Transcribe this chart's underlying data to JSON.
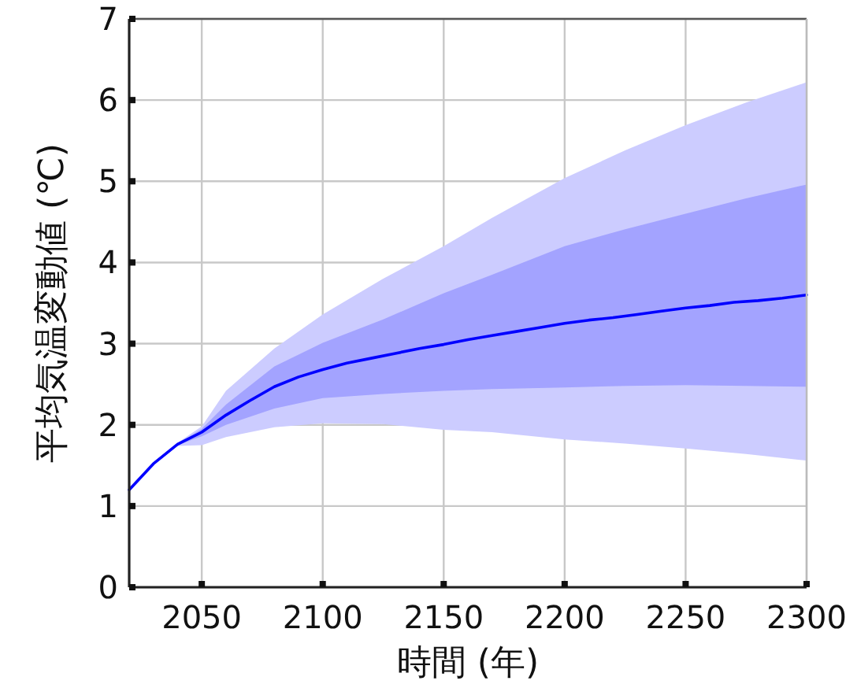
{
  "chart_data": {
    "type": "line",
    "xlabel": "時間 (年)",
    "ylabel": "平均気温変動値 (℃)",
    "xlim": [
      2020,
      2300
    ],
    "ylim": [
      0,
      7
    ],
    "xticks": [
      2050,
      2100,
      2150,
      2200,
      2250,
      2300
    ],
    "yticks": [
      0,
      1,
      2,
      3,
      4,
      5,
      6,
      7
    ],
    "grid": true,
    "marker": "none",
    "line_style": "solid",
    "series": [
      {
        "color": "#ccccff",
        "x": [
          2040,
          2050,
          2060,
          2080,
          2100,
          2125,
          2150,
          2170,
          2200,
          2225,
          2250,
          2275,
          2300
        ],
        "values": [
          null,
          null,
          null,
          null,
          null,
          null,
          null,
          null,
          null,
          null,
          null,
          null,
          null
        ],
        "lower": [
          1.74,
          1.75,
          1.85,
          1.97,
          2.02,
          2.01,
          1.94,
          1.91,
          1.82,
          1.77,
          1.71,
          1.64,
          1.56
        ],
        "upper": [
          1.78,
          1.98,
          2.42,
          2.94,
          3.36,
          3.8,
          4.2,
          4.55,
          5.04,
          5.38,
          5.69,
          5.97,
          6.22
        ]
      },
      {
        "color": "#a3a3ff",
        "x": [
          2040,
          2050,
          2060,
          2080,
          2100,
          2125,
          2150,
          2170,
          2200,
          2225,
          2250,
          2275,
          2300
        ],
        "values": [
          null,
          null,
          null,
          null,
          null,
          null,
          null,
          null,
          null,
          null,
          null,
          null,
          null
        ],
        "lower": [
          1.75,
          1.86,
          2.0,
          2.2,
          2.33,
          2.38,
          2.42,
          2.44,
          2.46,
          2.48,
          2.49,
          2.48,
          2.47
        ],
        "upper": [
          1.77,
          1.95,
          2.25,
          2.72,
          3.01,
          3.3,
          3.62,
          3.85,
          4.2,
          4.41,
          4.6,
          4.79,
          4.96
        ]
      },
      {
        "color": "#0000ff",
        "x": [
          2020,
          2030,
          2040,
          2050,
          2060,
          2070,
          2080,
          2090,
          2100,
          2110,
          2120,
          2130,
          2140,
          2150,
          2160,
          2170,
          2180,
          2190,
          2200,
          2210,
          2220,
          2230,
          2240,
          2250,
          2260,
          2270,
          2280,
          2290,
          2300
        ],
        "values": [
          1.2,
          1.52,
          1.76,
          1.91,
          2.12,
          2.3,
          2.47,
          2.59,
          2.68,
          2.76,
          2.82,
          2.88,
          2.94,
          2.99,
          3.05,
          3.1,
          3.15,
          3.2,
          3.25,
          3.29,
          3.32,
          3.36,
          3.4,
          3.44,
          3.47,
          3.51,
          3.53,
          3.56,
          3.6
        ]
      }
    ]
  }
}
